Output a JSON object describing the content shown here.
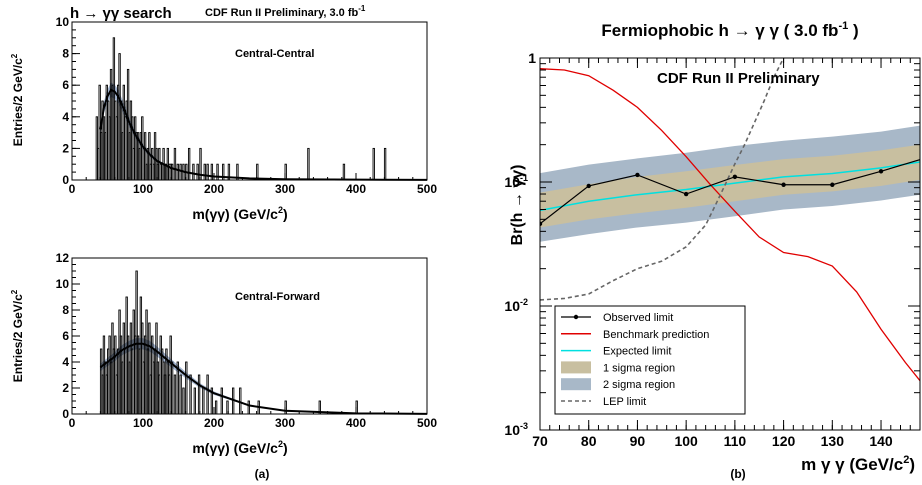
{
  "left": {
    "header_left": "h → γγ search",
    "header_right": "CDF Run II Preliminary, 3.0 fb",
    "header_right_sup": "-1",
    "caption": "(a)",
    "panels": [
      {
        "label": "Central-Central",
        "ylabel": "Entries/2 GeV/c",
        "ylabel_sup": "2",
        "xlabel": "m(γγ) (GeV/c",
        "xlabel_sup": "2",
        "xlabel_end": ")"
      },
      {
        "label": "Central-Forward",
        "ylabel": "Entries/2 GeV/c",
        "ylabel_sup": "2",
        "xlabel": "m(γγ) (GeV/c",
        "xlabel_sup": "2",
        "xlabel_end": ")"
      }
    ]
  },
  "right": {
    "title": "Fermiophobic h → γ γ ( 3.0 fb",
    "title_sup": "-1",
    "title_end": " )",
    "watermark": "CDF Run II Preliminary",
    "ylabel": "Br(h → γγ)",
    "xlabel": "m γ γ (GeV/c",
    "xlabel_sup": "2",
    "xlabel_end": ")",
    "caption": "(b)"
  },
  "colors": {
    "observed": "#000000",
    "benchmark": "#e00000",
    "expected": "#00e0e0",
    "sigma1": "#c8bfa0",
    "sigma2": "#a8b8c8",
    "lep": "#666666",
    "fit": "#000000",
    "fit_band": "#5577aa"
  },
  "chart_data": [
    {
      "type": "bar",
      "title": "Central-Central",
      "xlabel": "m(γγ) (GeV/c2)",
      "ylabel": "Entries/2 GeV/c2",
      "xlim": [
        0,
        500
      ],
      "ylim": [
        0,
        10
      ],
      "xticks": [
        0,
        100,
        200,
        300,
        400,
        500
      ],
      "yticks": [
        0,
        2,
        4,
        6,
        8,
        10
      ],
      "bin_width": 2,
      "histogram": {
        "x": [
          34,
          36,
          38,
          40,
          42,
          44,
          46,
          48,
          50,
          52,
          54,
          56,
          58,
          60,
          62,
          64,
          66,
          68,
          70,
          72,
          74,
          76,
          78,
          80,
          82,
          84,
          86,
          88,
          90,
          92,
          94,
          96,
          98,
          100,
          102,
          104,
          106,
          108,
          110,
          112,
          114,
          116,
          118,
          120,
          122,
          124,
          126,
          128,
          130,
          132,
          134,
          136,
          138,
          140,
          144,
          148,
          152,
          156,
          160,
          164,
          170,
          176,
          180,
          186,
          190,
          196,
          204,
          212,
          220,
          232,
          260,
          300,
          332,
          382,
          424,
          440
        ],
        "values": [
          4,
          2,
          6,
          3,
          5,
          4,
          3,
          6,
          5,
          4,
          7,
          6,
          9,
          5,
          4,
          6,
          8,
          5,
          3,
          6,
          4,
          5,
          7,
          3,
          5,
          4,
          2,
          4,
          3,
          3,
          2,
          3,
          4,
          2,
          3,
          1,
          2,
          3,
          1,
          2,
          1,
          3,
          2,
          1,
          2,
          1,
          1,
          2,
          1,
          1,
          2,
          1,
          1,
          1,
          2,
          1,
          1,
          1,
          1,
          2,
          1,
          1,
          2,
          1,
          1,
          1,
          1,
          1,
          1,
          1,
          1,
          1,
          2,
          1,
          2,
          2
        ]
      },
      "fit": {
        "name": "",
        "x": [
          40,
          45,
          50,
          55,
          60,
          65,
          70,
          75,
          80,
          90,
          100,
          110,
          120,
          140,
          160,
          180,
          200,
          250,
          300,
          400,
          500
        ],
        "y": [
          3.2,
          4.6,
          5.3,
          5.7,
          5.6,
          5.3,
          4.8,
          4.3,
          3.7,
          2.8,
          2.1,
          1.6,
          1.2,
          0.75,
          0.5,
          0.33,
          0.22,
          0.1,
          0.05,
          0.02,
          0.01
        ]
      }
    },
    {
      "type": "bar",
      "title": "Central-Forward",
      "xlabel": "m(γγ) (GeV/c2)",
      "ylabel": "Entries/2 GeV/c2",
      "xlim": [
        0,
        500
      ],
      "ylim": [
        0,
        12
      ],
      "xticks": [
        0,
        100,
        200,
        300,
        400,
        500
      ],
      "yticks": [
        0,
        2,
        4,
        6,
        8,
        10,
        12
      ],
      "bin_width": 2,
      "histogram": {
        "x": [
          40,
          42,
          44,
          46,
          48,
          50,
          52,
          54,
          56,
          58,
          60,
          62,
          64,
          66,
          68,
          70,
          72,
          74,
          76,
          78,
          80,
          82,
          84,
          86,
          88,
          90,
          92,
          94,
          96,
          98,
          100,
          102,
          104,
          106,
          108,
          110,
          112,
          114,
          116,
          118,
          120,
          122,
          124,
          126,
          128,
          130,
          132,
          134,
          136,
          138,
          140,
          144,
          148,
          152,
          156,
          160,
          166,
          172,
          178,
          184,
          190,
          196,
          202,
          210,
          218,
          226,
          236,
          248,
          262,
          300,
          348,
          400
        ],
        "values": [
          5,
          3,
          6,
          4,
          3,
          5,
          6,
          4,
          7,
          5,
          6,
          3,
          5,
          8,
          6,
          4,
          7,
          5,
          9,
          6,
          4,
          7,
          5,
          8,
          6,
          11,
          6,
          5,
          9,
          7,
          4,
          6,
          8,
          5,
          7,
          3,
          6,
          4,
          5,
          7,
          4,
          3,
          6,
          5,
          4,
          3,
          5,
          4,
          3,
          6,
          4,
          3,
          4,
          3,
          2,
          4,
          3,
          2,
          3,
          2,
          3,
          2,
          1,
          2,
          1,
          2,
          2,
          1,
          1,
          1,
          1,
          1
        ]
      },
      "fit": {
        "name": "",
        "x": [
          40,
          50,
          60,
          70,
          80,
          90,
          100,
          110,
          120,
          140,
          160,
          180,
          200,
          250,
          300,
          400,
          500
        ],
        "y": [
          3.6,
          4.0,
          4.4,
          4.9,
          5.2,
          5.4,
          5.4,
          5.2,
          4.8,
          3.9,
          3.0,
          2.2,
          1.6,
          0.65,
          0.25,
          0.05,
          0.01
        ]
      }
    },
    {
      "type": "line",
      "title": "Fermiophobic h → γ γ ( 3.0 fb-1 )",
      "xlabel": "m γ γ (GeV/c2)",
      "ylabel": "Br(h → γγ)",
      "xlim": [
        70,
        148
      ],
      "ylim": [
        0.001,
        1
      ],
      "yscale": "log",
      "xticks": [
        70,
        80,
        90,
        100,
        110,
        120,
        130,
        140
      ],
      "yticks": [
        0.001,
        0.01,
        0.1,
        1
      ],
      "legend_position": "bottom-left",
      "series": [
        {
          "name": "Observed limit",
          "x": [
            70,
            80,
            90,
            100,
            110,
            120,
            130,
            140,
            150
          ],
          "y": [
            0.046,
            0.093,
            0.114,
            0.08,
            0.11,
            0.095,
            0.095,
            0.122,
            0.16
          ]
        },
        {
          "name": "Benchmark prediction",
          "x": [
            70,
            75,
            80,
            85,
            90,
            95,
            100,
            105,
            110,
            115,
            120,
            125,
            130,
            135,
            140,
            145,
            148
          ],
          "y": [
            0.82,
            0.8,
            0.72,
            0.55,
            0.4,
            0.26,
            0.16,
            0.095,
            0.058,
            0.036,
            0.027,
            0.025,
            0.021,
            0.013,
            0.0065,
            0.0035,
            0.0025
          ]
        },
        {
          "name": "Expected limit",
          "x": [
            70,
            80,
            90,
            100,
            110,
            120,
            130,
            140,
            148
          ],
          "y": [
            0.059,
            0.07,
            0.079,
            0.087,
            0.098,
            0.11,
            0.117,
            0.13,
            0.145
          ]
        },
        {
          "name": "1 sigma region",
          "x": [
            70,
            80,
            90,
            100,
            110,
            120,
            130,
            140,
            148
          ],
          "low": [
            0.043,
            0.05,
            0.056,
            0.062,
            0.07,
            0.079,
            0.084,
            0.093,
            0.104
          ],
          "high": [
            0.082,
            0.096,
            0.11,
            0.122,
            0.137,
            0.153,
            0.163,
            0.18,
            0.2
          ]
        },
        {
          "name": "2 sigma region",
          "x": [
            70,
            80,
            90,
            100,
            110,
            120,
            130,
            140,
            148
          ],
          "low": [
            0.033,
            0.038,
            0.043,
            0.047,
            0.053,
            0.06,
            0.064,
            0.071,
            0.079
          ],
          "high": [
            0.118,
            0.138,
            0.155,
            0.172,
            0.195,
            0.215,
            0.232,
            0.255,
            0.285
          ]
        },
        {
          "name": "LEP limit",
          "x": [
            70,
            75,
            80,
            85,
            90,
            95,
            100,
            104,
            106,
            108,
            110,
            112,
            114,
            116,
            118,
            120
          ],
          "y": [
            0.0112,
            0.0115,
            0.0125,
            0.016,
            0.02,
            0.023,
            0.03,
            0.045,
            0.065,
            0.095,
            0.14,
            0.2,
            0.3,
            0.45,
            0.7,
            1.0
          ]
        }
      ]
    }
  ]
}
